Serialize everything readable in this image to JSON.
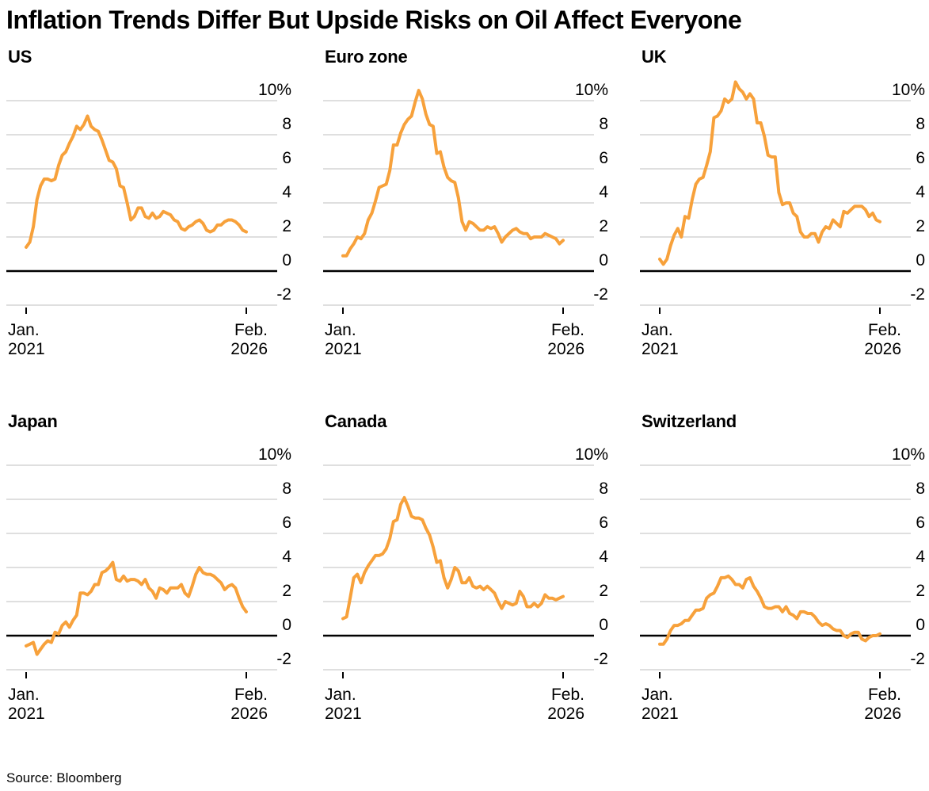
{
  "page": {
    "title": "Inflation Trends Differ But Upside Risks on Oil Affect Everyone",
    "source": "Source: Bloomberg"
  },
  "style": {
    "line_color": "#F7A13B",
    "grid_color": "#CCCCCC",
    "zero_line_color": "#000000",
    "tick_color": "#000000",
    "text_color": "#000000",
    "background": "#FFFFFF"
  },
  "chart_data": [
    {
      "type": "line",
      "title": "US",
      "x_unit": "monthly",
      "x_range": [
        "Jan 2021",
        "Feb 2026"
      ],
      "x_tick_labels": [
        [
          "Jan.",
          "2021"
        ],
        [
          "Feb.",
          "2026"
        ]
      ],
      "ylim": [
        -2,
        11.2
      ],
      "grid": true,
      "legend": "none",
      "ytick_values": [
        10,
        8,
        6,
        4,
        2,
        0,
        -2
      ],
      "ytick_labels": [
        "10%",
        "8",
        "6",
        "4",
        "2",
        "0",
        "-2"
      ],
      "values": [
        1.4,
        1.7,
        2.6,
        4.2,
        5.0,
        5.4,
        5.4,
        5.3,
        5.4,
        6.2,
        6.8,
        7.0,
        7.5,
        7.9,
        8.5,
        8.3,
        8.6,
        9.1,
        8.5,
        8.3,
        8.2,
        7.7,
        7.1,
        6.5,
        6.4,
        6.0,
        5.0,
        4.9,
        4.0,
        3.0,
        3.2,
        3.7,
        3.7,
        3.2,
        3.1,
        3.4,
        3.1,
        3.2,
        3.5,
        3.4,
        3.3,
        3.0,
        2.9,
        2.5,
        2.4,
        2.6,
        2.7,
        2.9,
        3.0,
        2.8,
        2.4,
        2.3,
        2.4,
        2.7,
        2.7,
        2.9,
        3.0,
        3.0,
        2.9,
        2.7,
        2.4,
        2.3
      ]
    },
    {
      "type": "line",
      "title": "Euro zone",
      "x_unit": "monthly",
      "x_range": [
        "Jan 2021",
        "Feb 2026"
      ],
      "x_tick_labels": [
        [
          "Jan.",
          "2021"
        ],
        [
          "Feb.",
          "2026"
        ]
      ],
      "ylim": [
        -2,
        11.2
      ],
      "grid": true,
      "legend": "none",
      "ytick_values": [
        10,
        8,
        6,
        4,
        2,
        0,
        -2
      ],
      "ytick_labels": [
        "10%",
        "8",
        "6",
        "4",
        "2",
        "0",
        "-2"
      ],
      "values": [
        0.9,
        0.9,
        1.3,
        1.6,
        2.0,
        1.9,
        2.2,
        3.0,
        3.4,
        4.1,
        4.9,
        5.0,
        5.1,
        5.9,
        7.4,
        7.4,
        8.1,
        8.6,
        8.9,
        9.1,
        9.9,
        10.6,
        10.1,
        9.2,
        8.6,
        8.5,
        6.9,
        7.0,
        6.1,
        5.5,
        5.3,
        5.2,
        4.3,
        2.9,
        2.4,
        2.9,
        2.8,
        2.6,
        2.4,
        2.4,
        2.6,
        2.5,
        2.6,
        2.2,
        1.7,
        2.0,
        2.2,
        2.4,
        2.5,
        2.3,
        2.2,
        2.2,
        1.9,
        2.0,
        2.0,
        2.0,
        2.2,
        2.1,
        2.0,
        1.9,
        1.6,
        1.8
      ]
    },
    {
      "type": "line",
      "title": "UK",
      "x_unit": "monthly",
      "x_range": [
        "Jan 2021",
        "Feb 2026"
      ],
      "x_tick_labels": [
        [
          "Jan.",
          "2021"
        ],
        [
          "Feb.",
          "2026"
        ]
      ],
      "ylim": [
        -2,
        11.2
      ],
      "grid": true,
      "legend": "none",
      "ytick_values": [
        10,
        8,
        6,
        4,
        2,
        0,
        -2
      ],
      "ytick_labels": [
        "10%",
        "8",
        "6",
        "4",
        "2",
        "0",
        "-2"
      ],
      "values": [
        0.7,
        0.4,
        0.7,
        1.5,
        2.1,
        2.5,
        2.0,
        3.2,
        3.1,
        4.2,
        5.1,
        5.4,
        5.5,
        6.2,
        7.0,
        9.0,
        9.1,
        9.4,
        10.1,
        9.9,
        10.1,
        11.1,
        10.7,
        10.5,
        10.1,
        10.4,
        10.1,
        8.7,
        8.7,
        7.9,
        6.8,
        6.7,
        6.7,
        4.6,
        3.9,
        4.0,
        4.0,
        3.4,
        3.2,
        2.3,
        2.0,
        2.0,
        2.2,
        2.2,
        1.7,
        2.3,
        2.6,
        2.5,
        3.0,
        2.8,
        2.6,
        3.5,
        3.4,
        3.6,
        3.8,
        3.8,
        3.8,
        3.6,
        3.2,
        3.4,
        3.0,
        2.9
      ]
    },
    {
      "type": "line",
      "title": "Japan",
      "x_unit": "monthly",
      "x_range": [
        "Jan 2021",
        "Feb 2026"
      ],
      "x_tick_labels": [
        [
          "Jan.",
          "2021"
        ],
        [
          "Feb.",
          "2026"
        ]
      ],
      "ylim": [
        -2,
        11.2
      ],
      "grid": true,
      "legend": "none",
      "ytick_values": [
        10,
        8,
        6,
        4,
        2,
        0,
        -2
      ],
      "ytick_labels": [
        "10%",
        "8",
        "6",
        "4",
        "2",
        "0",
        "-2"
      ],
      "values": [
        -0.6,
        -0.5,
        -0.4,
        -1.1,
        -0.8,
        -0.5,
        -0.3,
        -0.4,
        0.2,
        0.1,
        0.6,
        0.8,
        0.5,
        0.9,
        1.2,
        2.5,
        2.5,
        2.4,
        2.6,
        3.0,
        3.0,
        3.7,
        3.8,
        4.0,
        4.3,
        3.3,
        3.2,
        3.5,
        3.2,
        3.3,
        3.3,
        3.2,
        3.0,
        3.3,
        2.8,
        2.6,
        2.2,
        2.8,
        2.7,
        2.5,
        2.8,
        2.8,
        2.8,
        3.0,
        2.5,
        2.3,
        2.9,
        3.6,
        4.0,
        3.7,
        3.6,
        3.6,
        3.5,
        3.3,
        3.1,
        2.7,
        2.9,
        3.0,
        2.8,
        2.2,
        1.7,
        1.4
      ]
    },
    {
      "type": "line",
      "title": "Canada",
      "x_unit": "monthly",
      "x_range": [
        "Jan 2021",
        "Feb 2026"
      ],
      "x_tick_labels": [
        [
          "Jan.",
          "2021"
        ],
        [
          "Feb.",
          "2026"
        ]
      ],
      "ylim": [
        -2,
        11.2
      ],
      "grid": true,
      "legend": "none",
      "ytick_values": [
        10,
        8,
        6,
        4,
        2,
        0,
        -2
      ],
      "ytick_labels": [
        "10%",
        "8",
        "6",
        "4",
        "2",
        "0",
        "-2"
      ],
      "values": [
        1.0,
        1.1,
        2.2,
        3.4,
        3.6,
        3.1,
        3.7,
        4.1,
        4.4,
        4.7,
        4.7,
        4.8,
        5.1,
        5.7,
        6.7,
        6.8,
        7.7,
        8.1,
        7.6,
        7.0,
        6.9,
        6.9,
        6.8,
        6.3,
        5.9,
        5.2,
        4.3,
        4.4,
        3.4,
        2.8,
        3.3,
        4.0,
        3.8,
        3.1,
        3.1,
        3.4,
        2.9,
        2.8,
        2.9,
        2.7,
        2.9,
        2.7,
        2.5,
        2.0,
        1.6,
        2.0,
        1.9,
        1.8,
        1.9,
        2.6,
        2.3,
        1.7,
        1.7,
        1.9,
        1.7,
        1.9,
        2.4,
        2.2,
        2.2,
        2.1,
        2.2,
        2.3
      ]
    },
    {
      "type": "line",
      "title": "Switzerland",
      "x_unit": "monthly",
      "x_range": [
        "Jan 2021",
        "Feb 2026"
      ],
      "x_tick_labels": [
        [
          "Jan.",
          "2021"
        ],
        [
          "Feb.",
          "2026"
        ]
      ],
      "ylim": [
        -2,
        11.2
      ],
      "grid": true,
      "legend": "none",
      "ytick_values": [
        10,
        8,
        6,
        4,
        2,
        0,
        -2
      ],
      "ytick_labels": [
        "10%",
        "8",
        "6",
        "4",
        "2",
        "0",
        "-2"
      ],
      "values": [
        -0.5,
        -0.5,
        -0.2,
        0.3,
        0.6,
        0.6,
        0.7,
        0.9,
        0.9,
        1.2,
        1.5,
        1.5,
        1.6,
        2.2,
        2.4,
        2.5,
        2.9,
        3.4,
        3.4,
        3.5,
        3.3,
        3.0,
        3.0,
        2.8,
        3.3,
        3.4,
        2.9,
        2.6,
        2.2,
        1.7,
        1.6,
        1.6,
        1.7,
        1.7,
        1.4,
        1.7,
        1.3,
        1.2,
        1.0,
        1.4,
        1.4,
        1.3,
        1.3,
        1.1,
        0.8,
        0.6,
        0.7,
        0.6,
        0.4,
        0.3,
        0.3,
        0.0,
        -0.1,
        0.1,
        0.2,
        0.2,
        -0.2,
        -0.3,
        -0.1,
        0.0,
        0.0,
        0.1
      ]
    }
  ]
}
